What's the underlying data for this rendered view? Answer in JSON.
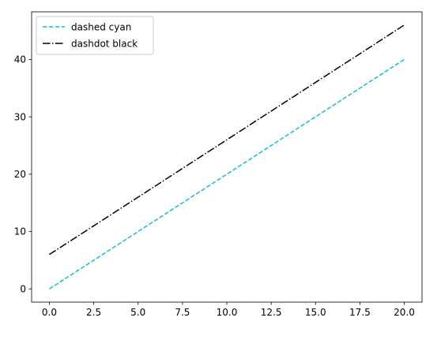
{
  "chart_data": {
    "type": "line",
    "title": "",
    "xlabel": "",
    "ylabel": "",
    "xlim": [
      -1.0,
      21.0
    ],
    "ylim": [
      -2.3,
      48.3
    ],
    "xticks": [
      0.0,
      2.5,
      5.0,
      7.5,
      10.0,
      12.5,
      15.0,
      17.5,
      20.0
    ],
    "xtick_labels": [
      "0.0",
      "2.5",
      "5.0",
      "7.5",
      "10.0",
      "12.5",
      "15.0",
      "17.5",
      "20.0"
    ],
    "yticks": [
      0,
      10,
      20,
      30,
      40
    ],
    "ytick_labels": [
      "0",
      "10",
      "20",
      "30",
      "40"
    ],
    "grid": false,
    "legend_position": "top-left",
    "series": [
      {
        "name": "dashed cyan",
        "color": "#17becf",
        "linestyle": "dashed",
        "x": [
          0,
          20
        ],
        "y": [
          0,
          40
        ]
      },
      {
        "name": "dashdot black",
        "color": "#000000",
        "linestyle": "dashdot",
        "x": [
          0,
          20
        ],
        "y": [
          6,
          46
        ]
      }
    ]
  }
}
